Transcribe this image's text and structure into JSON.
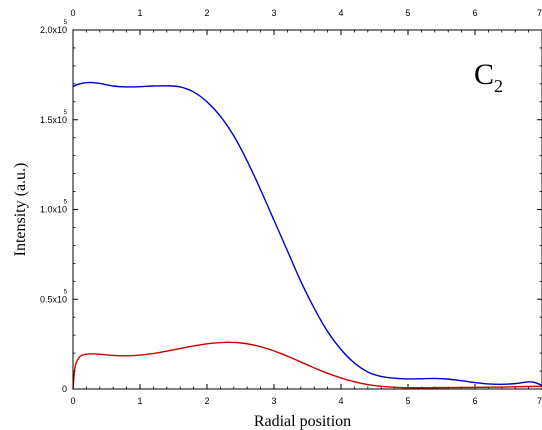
{
  "chart_data": {
    "type": "line",
    "xlabel": "Radial position",
    "ylabel": "Intensity (a.u.)",
    "panel_label": {
      "main": "C",
      "subscript": "2"
    },
    "xlim": [
      0,
      7
    ],
    "ylim": [
      0,
      200000
    ],
    "x_ticks": [
      "0",
      "1",
      "2",
      "3",
      "4",
      "5",
      "6",
      "7"
    ],
    "y_ticks": [
      {
        "value": 0,
        "mantissa": "0",
        "exponent": ""
      },
      {
        "value": 50000,
        "mantissa": "0.5x10",
        "exponent": "5"
      },
      {
        "value": 100000,
        "mantissa": "1.0x10",
        "exponent": "5"
      },
      {
        "value": 150000,
        "mantissa": "1.5x10",
        "exponent": "5"
      },
      {
        "value": 200000,
        "mantissa": "2.0x10",
        "exponent": "5"
      }
    ],
    "grid": false,
    "series": [
      {
        "color": "#0000cc",
        "points": [
          [
            0,
            168500
          ],
          [
            0.1,
            170000
          ],
          [
            0.25,
            170800
          ],
          [
            0.4,
            170200
          ],
          [
            0.6,
            168800
          ],
          [
            0.8,
            168300
          ],
          [
            1.0,
            168400
          ],
          [
            1.2,
            168800
          ],
          [
            1.4,
            168900
          ],
          [
            1.6,
            168300
          ],
          [
            1.8,
            165500
          ],
          [
            2.0,
            160000
          ],
          [
            2.2,
            152000
          ],
          [
            2.4,
            141000
          ],
          [
            2.6,
            127000
          ],
          [
            2.8,
            111000
          ],
          [
            3.0,
            94000
          ],
          [
            3.2,
            77000
          ],
          [
            3.4,
            60000
          ],
          [
            3.6,
            45000
          ],
          [
            3.8,
            32000
          ],
          [
            4.0,
            22000
          ],
          [
            4.2,
            14500
          ],
          [
            4.4,
            9500
          ],
          [
            4.6,
            7000
          ],
          [
            4.8,
            6000
          ],
          [
            5.0,
            5600
          ],
          [
            5.2,
            5700
          ],
          [
            5.4,
            5900
          ],
          [
            5.6,
            5500
          ],
          [
            5.8,
            4600
          ],
          [
            6.0,
            3600
          ],
          [
            6.2,
            2800
          ],
          [
            6.4,
            2600
          ],
          [
            6.6,
            3000
          ],
          [
            6.8,
            4000
          ],
          [
            6.9,
            3500
          ],
          [
            7.0,
            2000
          ]
        ]
      },
      {
        "color": "#cc0000",
        "points": [
          [
            0,
            0
          ],
          [
            0.03,
            12000
          ],
          [
            0.08,
            17000
          ],
          [
            0.15,
            19000
          ],
          [
            0.3,
            19600
          ],
          [
            0.5,
            19000
          ],
          [
            0.7,
            18500
          ],
          [
            0.9,
            18600
          ],
          [
            1.1,
            19300
          ],
          [
            1.3,
            20400
          ],
          [
            1.5,
            21800
          ],
          [
            1.7,
            23300
          ],
          [
            1.9,
            24600
          ],
          [
            2.1,
            25600
          ],
          [
            2.3,
            26000
          ],
          [
            2.5,
            25700
          ],
          [
            2.7,
            24500
          ],
          [
            2.9,
            22500
          ],
          [
            3.1,
            19800
          ],
          [
            3.3,
            16700
          ],
          [
            3.5,
            13400
          ],
          [
            3.7,
            10200
          ],
          [
            3.9,
            7400
          ],
          [
            4.1,
            5000
          ],
          [
            4.3,
            3200
          ],
          [
            4.5,
            1900
          ],
          [
            4.7,
            1200
          ],
          [
            4.9,
            800
          ],
          [
            5.2,
            700
          ],
          [
            5.6,
            800
          ],
          [
            6.0,
            900
          ],
          [
            6.4,
            1100
          ],
          [
            6.8,
            1400
          ],
          [
            7.0,
            1500
          ]
        ]
      }
    ]
  }
}
